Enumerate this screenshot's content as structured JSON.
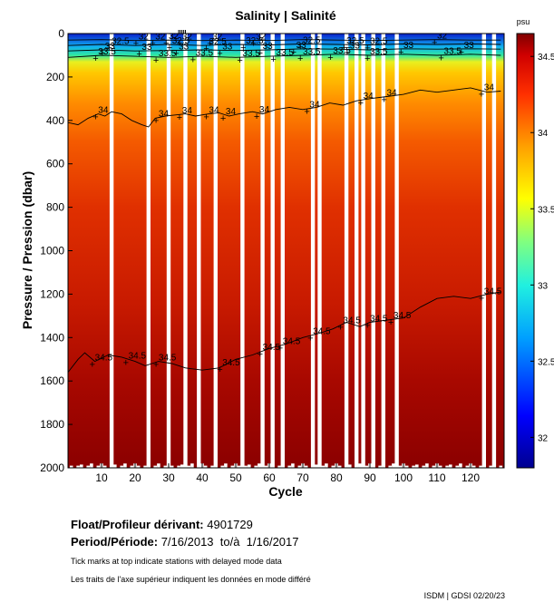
{
  "chart_data": {
    "type": "heatmap",
    "title": "Salinity | Salinité",
    "xlabel": "Cycle",
    "ylabel": "Pressure / Pression (dbar)",
    "xlim": [
      0,
      130
    ],
    "ylim": [
      2000,
      0
    ],
    "x_ticks": [
      10,
      20,
      30,
      40,
      50,
      60,
      70,
      80,
      90,
      100,
      110,
      120
    ],
    "y_ticks": [
      0,
      200,
      400,
      600,
      800,
      1000,
      1200,
      1400,
      1600,
      1800,
      2000
    ],
    "colorbar": {
      "unit": "psu",
      "range": [
        31.8,
        34.65
      ],
      "ticks": [
        32,
        32.5,
        33,
        33.5,
        34,
        34.5
      ],
      "tick_labels": [
        "32",
        "32.5",
        "33",
        "33.5",
        "34",
        "34.5"
      ]
    },
    "missing_cycles": [
      13,
      24,
      30,
      35,
      39,
      44,
      52,
      58,
      61,
      64,
      73,
      75,
      83,
      86,
      88,
      91,
      94,
      98,
      124,
      127
    ],
    "delayed_mode_tick_cycles": [
      33,
      33.5,
      34,
      34.5,
      35
    ],
    "profile_pressure_max": [
      1980,
      1990,
      2000,
      1990,
      1985,
      2000,
      1990,
      1980,
      2000,
      1990
    ],
    "contours": [
      {
        "level": 34,
        "label": "34",
        "points": [
          [
            0,
            410
          ],
          [
            3,
            420
          ],
          [
            6,
            390
          ],
          [
            9,
            370
          ],
          [
            11,
            380
          ],
          [
            13,
            360
          ],
          [
            16,
            370
          ],
          [
            19,
            400
          ],
          [
            22,
            420
          ],
          [
            24,
            430
          ],
          [
            26,
            390
          ],
          [
            29,
            380
          ],
          [
            32,
            375
          ],
          [
            35,
            370
          ],
          [
            38,
            380
          ],
          [
            42,
            370
          ],
          [
            45,
            365
          ],
          [
            48,
            380
          ],
          [
            51,
            370
          ],
          [
            55,
            360
          ],
          [
            58,
            370
          ],
          [
            62,
            350
          ],
          [
            66,
            340
          ],
          [
            70,
            350
          ],
          [
            74,
            340
          ],
          [
            78,
            320
          ],
          [
            82,
            330
          ],
          [
            86,
            310
          ],
          [
            90,
            300
          ],
          [
            95,
            290
          ],
          [
            100,
            280
          ],
          [
            105,
            260
          ],
          [
            110,
            270
          ],
          [
            115,
            260
          ],
          [
            120,
            250
          ],
          [
            125,
            270
          ],
          [
            129,
            265
          ]
        ],
        "label_cycles": [
          9,
          27,
          34,
          42,
          47,
          57,
          72,
          88,
          95,
          124
        ]
      },
      {
        "level": 34.5,
        "label": "34.5",
        "points": [
          [
            0,
            1560
          ],
          [
            3,
            1500
          ],
          [
            5,
            1470
          ],
          [
            8,
            1510
          ],
          [
            12,
            1480
          ],
          [
            16,
            1490
          ],
          [
            20,
            1510
          ],
          [
            23,
            1530
          ],
          [
            27,
            1510
          ],
          [
            31,
            1520
          ],
          [
            35,
            1540
          ],
          [
            40,
            1550
          ],
          [
            45,
            1540
          ],
          [
            50,
            1500
          ],
          [
            55,
            1480
          ],
          [
            60,
            1450
          ],
          [
            65,
            1430
          ],
          [
            70,
            1400
          ],
          [
            75,
            1380
          ],
          [
            79,
            1360
          ],
          [
            83,
            1330
          ],
          [
            87,
            1350
          ],
          [
            90,
            1330
          ],
          [
            95,
            1320
          ],
          [
            100,
            1310
          ],
          [
            105,
            1260
          ],
          [
            110,
            1220
          ],
          [
            115,
            1210
          ],
          [
            120,
            1220
          ],
          [
            125,
            1200
          ],
          [
            129,
            1190
          ]
        ],
        "label_cycles": [
          8,
          18,
          27,
          46,
          58,
          64,
          73,
          82,
          90,
          97,
          124
        ]
      },
      {
        "level": 33.5,
        "label": "33.5",
        "points": [
          [
            0,
            110
          ],
          [
            10,
            100
          ],
          [
            20,
            105
          ],
          [
            30,
            110
          ],
          [
            40,
            105
          ],
          [
            50,
            110
          ],
          [
            60,
            105
          ],
          [
            70,
            100
          ],
          [
            80,
            95
          ],
          [
            90,
            100
          ],
          [
            100,
            95
          ],
          [
            110,
            100
          ],
          [
            120,
            95
          ],
          [
            129,
            100
          ]
        ],
        "label_cycles": [
          9,
          27,
          38,
          52,
          62,
          70,
          79,
          90,
          112
        ]
      },
      {
        "level": 33,
        "label": "33",
        "points": [
          [
            0,
            80
          ],
          [
            10,
            75
          ],
          [
            20,
            80
          ],
          [
            30,
            78
          ],
          [
            40,
            75
          ],
          [
            50,
            78
          ],
          [
            60,
            75
          ],
          [
            70,
            70
          ],
          [
            80,
            72
          ],
          [
            90,
            75
          ],
          [
            100,
            70
          ],
          [
            110,
            72
          ],
          [
            120,
            70
          ],
          [
            129,
            72
          ]
        ],
        "label_cycles": [
          11,
          22,
          33,
          46,
          58,
          68,
          84,
          100,
          118
        ]
      },
      {
        "level": 32.5,
        "label": "32.5",
        "points": [
          [
            0,
            55
          ],
          [
            10,
            50
          ],
          [
            20,
            55
          ],
          [
            30,
            50
          ],
          [
            40,
            55
          ],
          [
            50,
            50
          ],
          [
            60,
            52
          ],
          [
            70,
            48
          ],
          [
            80,
            50
          ],
          [
            90,
            52
          ],
          [
            100,
            48
          ],
          [
            110,
            50
          ],
          [
            120,
            48
          ],
          [
            129,
            50
          ]
        ],
        "label_cycles": [
          13,
          31,
          42,
          53,
          70,
          83,
          90
        ]
      },
      {
        "level": 32,
        "label": "32",
        "points": [
          [
            0,
            30
          ],
          [
            10,
            28
          ],
          [
            20,
            32
          ],
          [
            30,
            30
          ],
          [
            40,
            32
          ],
          [
            50,
            30
          ],
          [
            60,
            32
          ],
          [
            70,
            28
          ],
          [
            80,
            30
          ],
          [
            90,
            32
          ],
          [
            100,
            30
          ],
          [
            110,
            28
          ],
          [
            120,
            30
          ],
          [
            129,
            30
          ]
        ],
        "label_cycles": [
          21,
          26,
          30,
          34,
          43,
          56,
          110
        ]
      }
    ]
  },
  "info": {
    "float_label": "Float/Profileur dérivant:",
    "float_value": "4901729",
    "period_label": "Period/Période:",
    "period_value": "7/16/2013  to/à  1/16/2017",
    "note_en": "Tick marks at top indicate stations with delayed mode data",
    "note_fr": "Les traits de l'axe supérieur indiquent les données en mode différé",
    "footer": "ISDM | GDSI  02/20/23"
  },
  "colors": {
    "deep": "#8b0000",
    "mid": "#e03000",
    "upper": "#ff9a00",
    "low_salinity": "#1040c8",
    "missing": "#ffffff"
  }
}
